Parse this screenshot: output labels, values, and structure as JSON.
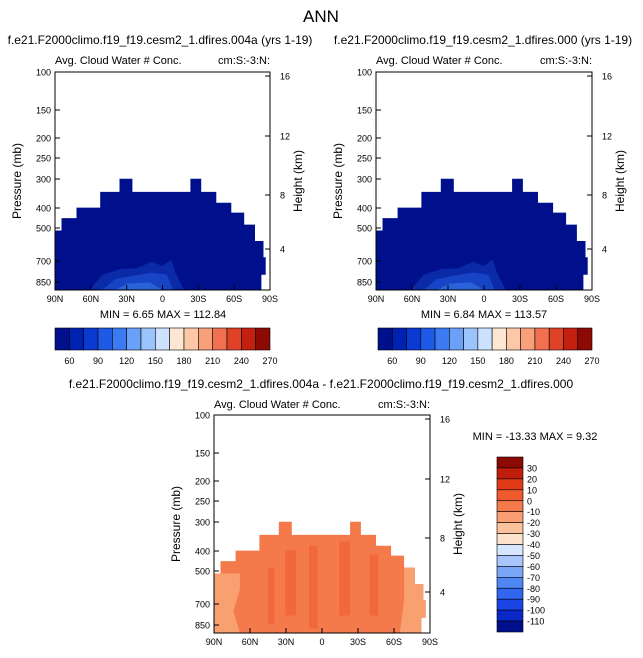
{
  "figure_title": "ANN",
  "colors": {
    "top_scale": [
      "#00108c",
      "#0022b0",
      "#0a3ad2",
      "#1e5ae6",
      "#3c7af2",
      "#6aa0f8",
      "#9cc4fc",
      "#cde2fe",
      "#fde6d2",
      "#fcc8a8",
      "#f8a07a",
      "#f07050",
      "#e04228",
      "#c42010",
      "#8c0a04"
    ],
    "diff_scale": [
      "#00108c",
      "#0a28c8",
      "#1a44e4",
      "#3266f0",
      "#4e86f4",
      "#7aa6f8",
      "#a8c6fb",
      "#d6e6fd",
      "#fde2cc",
      "#fbc29e",
      "#f89e72",
      "#f47a4c",
      "#ee5a2c",
      "#e03a16",
      "#c01e0a",
      "#8c0a04"
    ],
    "top_fill_dark": "#00108c",
    "top_fill_lower": [
      "#0a2aa8",
      "#1644c4",
      "#2a62da"
    ],
    "diff_fill": "#f47a4c",
    "diff_fill_light": "#f8a070",
    "diff_fill_dark": "#ee5a2c"
  },
  "chart_data": [
    {
      "type": "heatmap",
      "panel_title": "f.e21.F2000climo.f19_f19.cesm2_1.dfires.004a (yrs 1-19)",
      "left_label": "Avg. Cloud Water # Conc.",
      "right_label": "cm:S:-3:N:",
      "ylabel": "Pressure (mb)",
      "ylabel_right": "Height (km)",
      "y_ticks": [
        "100",
        "150",
        "200",
        "250",
        "300",
        "400",
        "500",
        "700",
        "850"
      ],
      "y_right_ticks": [
        "16",
        "12",
        "8",
        "4"
      ],
      "x_ticks": [
        "90N",
        "60N",
        "30N",
        "0",
        "30S",
        "60S",
        "90S"
      ],
      "min_max": "MIN =  6.65   MAX = 112.84",
      "colorbar_labels": [
        "60",
        "90",
        "120",
        "150",
        "180",
        "210",
        "240",
        "270"
      ]
    },
    {
      "type": "heatmap",
      "panel_title": "f.e21.F2000climo.f19_f19.cesm2_1.dfires.000 (yrs 1-19)",
      "left_label": "Avg. Cloud Water # Conc.",
      "right_label": "cm:S:-3:N:",
      "ylabel": "Pressure (mb)",
      "ylabel_right": "Height (km)",
      "y_ticks": [
        "100",
        "150",
        "200",
        "250",
        "300",
        "400",
        "500",
        "700",
        "850"
      ],
      "y_right_ticks": [
        "16",
        "12",
        "8",
        "4"
      ],
      "x_ticks": [
        "90N",
        "60N",
        "30N",
        "0",
        "30S",
        "60S",
        "90S"
      ],
      "min_max": "MIN =  6.84   MAX = 113.57",
      "colorbar_labels": [
        "60",
        "90",
        "120",
        "150",
        "180",
        "210",
        "240",
        "270"
      ]
    },
    {
      "type": "heatmap",
      "panel_title": "f.e21.F2000climo.f19_f19.cesm2_1.dfires.004a - f.e21.F2000climo.f19_f19.cesm2_1.dfires.000",
      "left_label": "Avg. Cloud Water # Conc.",
      "right_label": "cm:S:-3:N:",
      "ylabel": "Pressure (mb)",
      "ylabel_right": "Height (km)",
      "y_ticks": [
        "100",
        "150",
        "200",
        "250",
        "300",
        "400",
        "500",
        "700",
        "850"
      ],
      "y_right_ticks": [
        "16",
        "12",
        "8",
        "4"
      ],
      "x_ticks": [
        "90N",
        "60N",
        "30N",
        "0",
        "30S",
        "60S",
        "90S"
      ],
      "min_max": "MIN = -13.33   MAX =  9.32",
      "colorbar_labels": [
        "30",
        "20",
        "10",
        "0",
        "-10",
        "-20",
        "-30",
        "-40",
        "-50",
        "-60",
        "-70",
        "-80",
        "-90",
        "-100",
        "-110"
      ]
    }
  ]
}
